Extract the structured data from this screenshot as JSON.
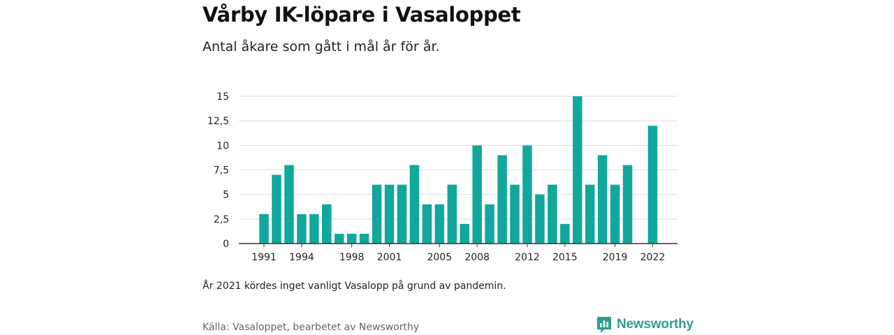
{
  "title": "Vårby IK-löpare i Vasaloppet",
  "subtitle": "Antal åkare som gått i mål år för år.",
  "note": "År 2021 kördes inget vanligt Vasalopp på grund av pandemin.",
  "source": "Källa: Vasaloppet, bearbetet av Newsworthy",
  "brand": {
    "name": "Newsworthy",
    "color": "#2f9c95",
    "icon": "newsworthy-logo-icon"
  },
  "colors": {
    "bar": "#12a79d",
    "grid": "#dddddd",
    "axis": "#333333"
  },
  "chart_data": {
    "type": "bar",
    "x": [
      1991,
      1992,
      1993,
      1994,
      1995,
      1996,
      1997,
      1998,
      1999,
      2000,
      2001,
      2002,
      2003,
      2004,
      2005,
      2006,
      2007,
      2008,
      2009,
      2010,
      2011,
      2012,
      2013,
      2014,
      2015,
      2016,
      2017,
      2018,
      2019,
      2020,
      2021,
      2022
    ],
    "values": [
      3,
      7,
      8,
      3,
      3,
      4,
      1,
      1,
      1,
      6,
      6,
      6,
      8,
      4,
      4,
      6,
      2,
      10,
      4,
      9,
      6,
      10,
      5,
      6,
      2,
      15,
      6,
      9,
      6,
      8,
      null,
      12
    ],
    "x_tick_labels": [
      "1991",
      "1994",
      "1998",
      "2001",
      "2005",
      "2008",
      "2012",
      "2015",
      "2019",
      "2022"
    ],
    "y_ticks": [
      0,
      2.5,
      5,
      7.5,
      10,
      12.5,
      15
    ],
    "y_tick_labels": [
      "0",
      "2,5",
      "5",
      "7,5",
      "10",
      "12,5",
      "15"
    ],
    "ylim": [
      0,
      15
    ],
    "grid": true,
    "xlabel": "",
    "ylabel": ""
  }
}
